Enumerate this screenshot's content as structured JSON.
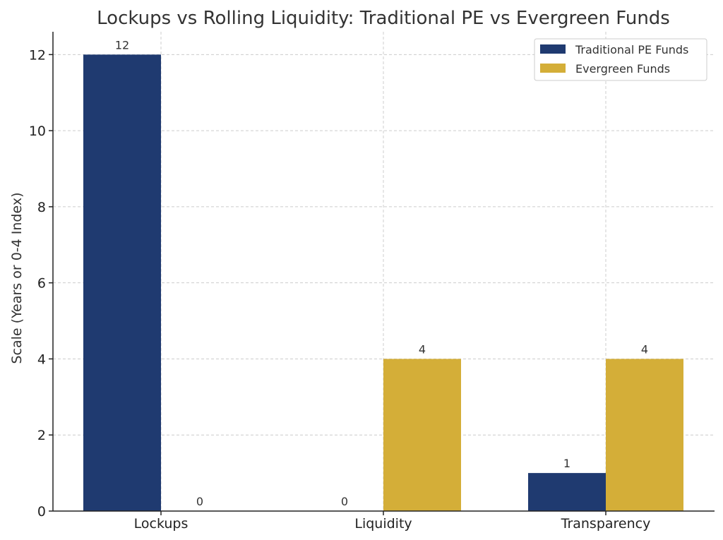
{
  "chart_data": {
    "type": "bar",
    "title": "Lockups vs Rolling Liquidity: Traditional PE vs Evergreen Funds",
    "xlabel": "",
    "ylabel": "Scale (Years or 0-4 Index)",
    "categories": [
      "Lockups",
      "Liquidity",
      "Transparency"
    ],
    "series": [
      {
        "name": "Traditional PE Funds",
        "values": [
          12,
          0,
          1
        ],
        "color": "#1f3a70"
      },
      {
        "name": "Evergreen Funds",
        "values": [
          0,
          4,
          4
        ],
        "color": "#d4ae38"
      }
    ],
    "ylim": [
      0,
      12.6
    ],
    "yticks": [
      0,
      2,
      4,
      6,
      8,
      10,
      12
    ],
    "grid": true,
    "legend_position": "top-right"
  }
}
